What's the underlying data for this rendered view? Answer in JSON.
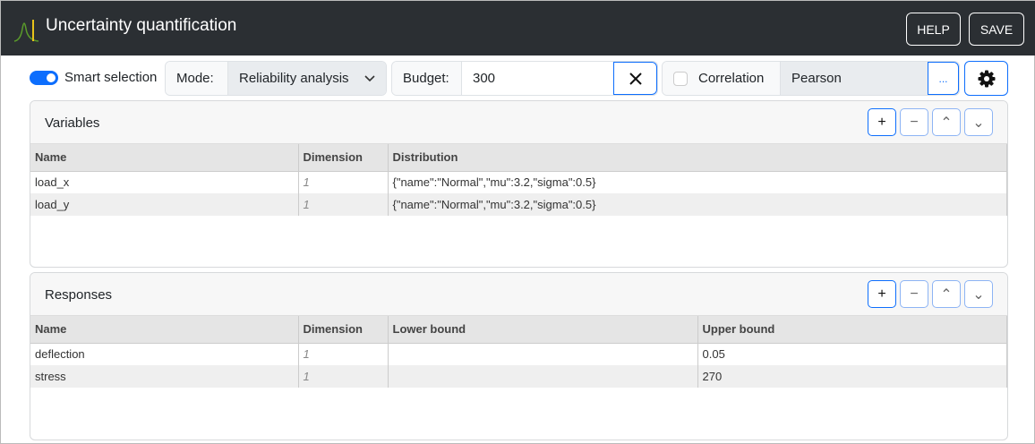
{
  "header": {
    "title": "Uncertainty quantification",
    "help": "HELP",
    "save": "SAVE",
    "logo_color": "#e8c21a"
  },
  "toolbar": {
    "smart_selection": "Smart selection",
    "smart_on": true,
    "mode_label": "Mode:",
    "mode_value": "Reliability analysis",
    "budget_label": "Budget:",
    "budget_value": "300",
    "correlation_label": "Correlation",
    "correlation_checked": false,
    "correlation_value": "Pearson",
    "more": "..."
  },
  "variables": {
    "title": "Variables",
    "columns": [
      "Name",
      "Dimension",
      "Distribution"
    ],
    "rows": [
      [
        "load_x",
        "1",
        "{\"name\":\"Normal\",\"mu\":3.2,\"sigma\":0.5}"
      ],
      [
        "load_y",
        "1",
        "{\"name\":\"Normal\",\"mu\":3.2,\"sigma\":0.5}"
      ]
    ]
  },
  "responses": {
    "title": "Responses",
    "columns": [
      "Name",
      "Dimension",
      "Lower bound",
      "Upper bound"
    ],
    "rows": [
      [
        "deflection",
        "1",
        "",
        "0.05"
      ],
      [
        "stress",
        "1",
        "",
        "270"
      ]
    ]
  },
  "panel_buttons": {
    "add": "+",
    "remove": "−",
    "up": "⌃",
    "down": "⌄"
  }
}
